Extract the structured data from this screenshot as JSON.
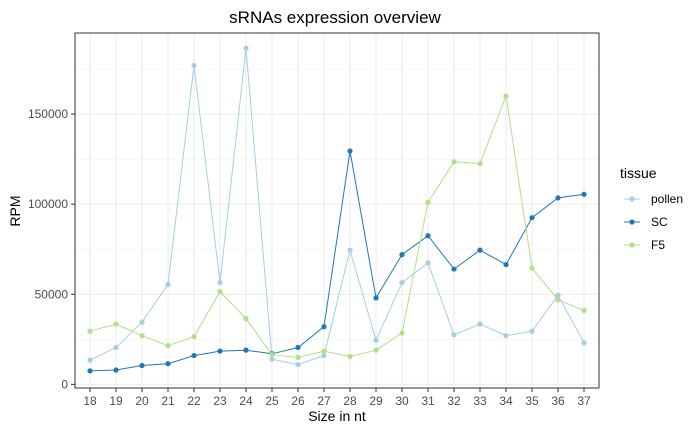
{
  "chart_data": {
    "type": "line",
    "title": "sRNAs expression overview",
    "xlabel": "Size in nt",
    "ylabel": "RPM",
    "x": [
      18,
      19,
      20,
      21,
      22,
      23,
      24,
      25,
      26,
      27,
      28,
      29,
      30,
      31,
      32,
      33,
      34,
      35,
      36,
      37
    ],
    "xlim": [
      18,
      37
    ],
    "ylim": [
      -2000,
      195000
    ],
    "y_ticks": [
      0,
      50000,
      100000,
      150000
    ],
    "y_tick_labels": [
      "0",
      "50000",
      "100000",
      "150000"
    ],
    "grid": true,
    "legend": {
      "title": "tissue",
      "position": "right"
    },
    "series": [
      {
        "name": "pollen",
        "color": "#a6cee3",
        "values": [
          13500,
          20500,
          34500,
          55500,
          177000,
          56500,
          186500,
          14000,
          11000,
          16000,
          74500,
          24500,
          56500,
          67500,
          27500,
          33500,
          27000,
          29500,
          49500,
          23000
        ]
      },
      {
        "name": "SC",
        "color": "#1f78b4",
        "values": [
          7500,
          8000,
          10500,
          11500,
          16000,
          18500,
          19000,
          17000,
          20500,
          32000,
          129500,
          48000,
          72000,
          82500,
          64000,
          74500,
          66500,
          92500,
          103500,
          105500
        ]
      },
      {
        "name": "F5",
        "color": "#b2df8a",
        "values": [
          29500,
          33500,
          27000,
          21500,
          26500,
          51500,
          36500,
          16500,
          15000,
          18500,
          15500,
          19000,
          28500,
          101000,
          123500,
          122500,
          160000,
          64500,
          47000,
          41000
        ]
      }
    ]
  }
}
